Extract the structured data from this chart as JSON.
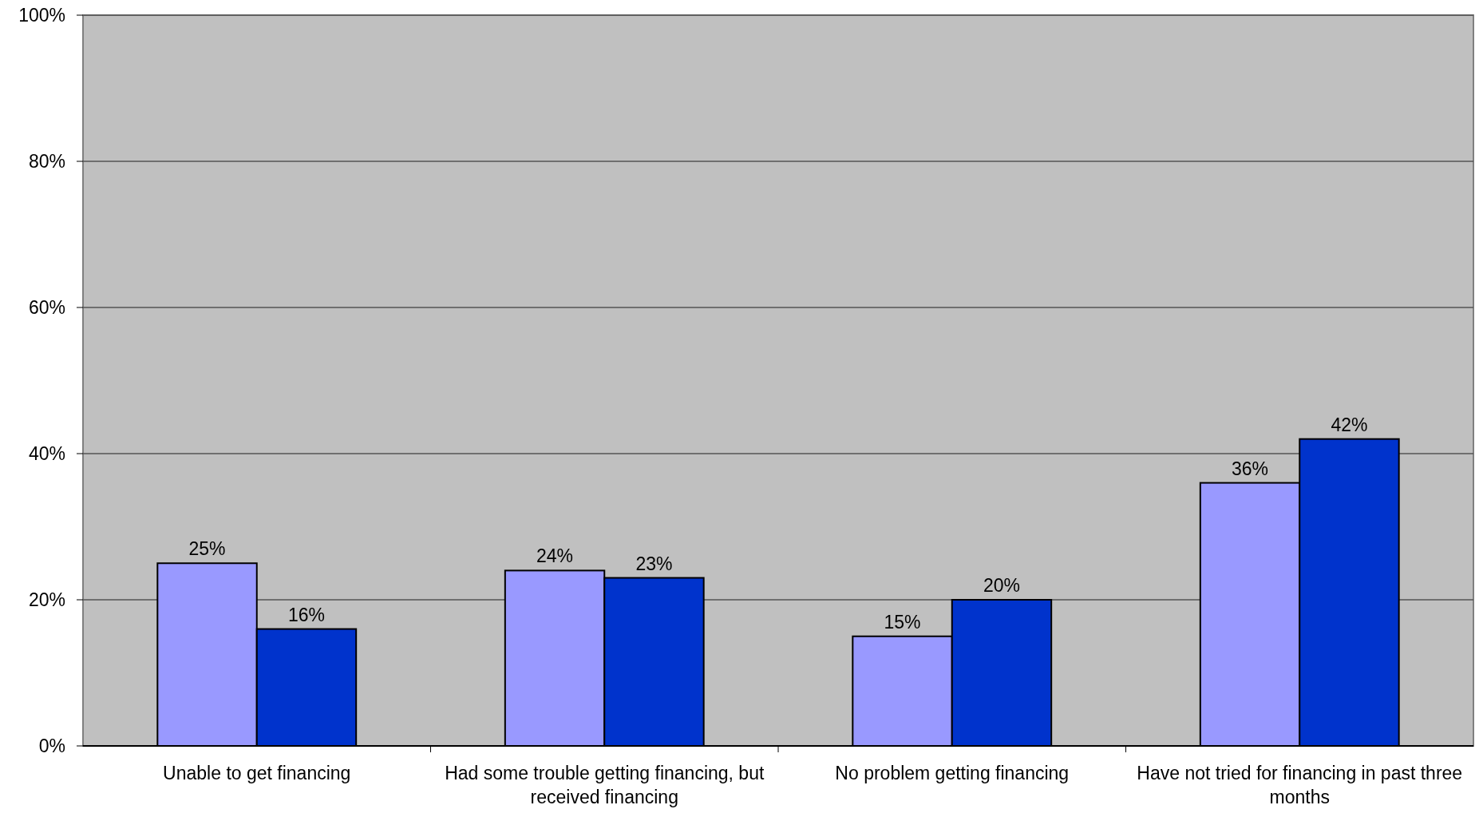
{
  "chart_data": {
    "type": "bar",
    "categories": [
      "Unable to get financing",
      "Had some trouble getting financing, but received financing",
      "No problem getting financing",
      "Have not tried for financing in past three months"
    ],
    "series": [
      {
        "color": "#9999ff",
        "values": [
          25,
          24,
          15,
          36
        ],
        "value_labels": [
          "25%",
          "24%",
          "15%",
          "36%"
        ]
      },
      {
        "color": "#0033cc",
        "values": [
          16,
          23,
          20,
          42
        ],
        "value_labels": [
          "16%",
          "23%",
          "20%",
          "42%"
        ]
      }
    ],
    "ylim": [
      0,
      100
    ],
    "yticks": [
      {
        "value": 0,
        "label": "0%"
      },
      {
        "value": 20,
        "label": "20%"
      },
      {
        "value": 40,
        "label": "40%"
      },
      {
        "value": 60,
        "label": "60%"
      },
      {
        "value": 80,
        "label": "80%"
      },
      {
        "value": 100,
        "label": "100%"
      }
    ],
    "grid": "y"
  }
}
